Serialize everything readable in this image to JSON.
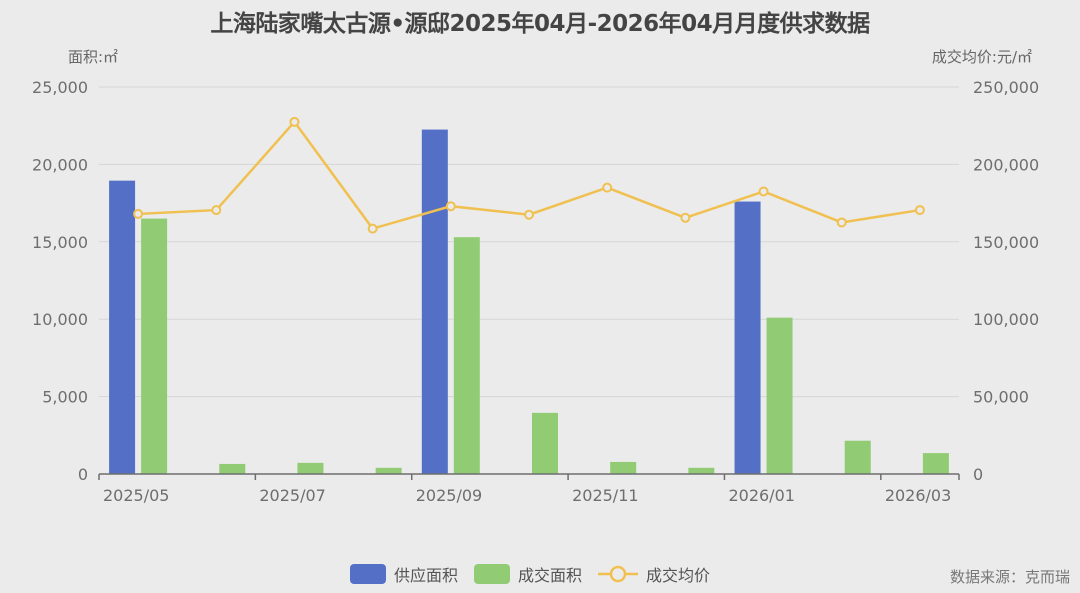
{
  "title": "上海陆家嘴太古源•源邸2025年04月-2026年04月月度供求数据",
  "left_axis_name": "面积:㎡",
  "right_axis_name": "成交均价:元/㎡",
  "legend": [
    {
      "label": "供应面积",
      "color": "#5470c6",
      "type": "bar"
    },
    {
      "label": "成交面积",
      "color": "#91cc75",
      "type": "bar"
    },
    {
      "label": "成交均价",
      "color": "#f0c050",
      "type": "line"
    }
  ],
  "source": "数据来源：克而瑞",
  "chart_data": {
    "type": "bar",
    "title": "上海陆家嘴太古源•源邸2025年04月-2026年04月月度供求数据",
    "xlabel": "",
    "ylabel": "面积:㎡",
    "y2label": "成交均价:元/㎡",
    "ylim": [
      0,
      25000
    ],
    "y2lim": [
      0,
      250000
    ],
    "yticks": [
      0,
      5000,
      10000,
      15000,
      20000,
      25000
    ],
    "y2ticks": [
      0,
      50000,
      100000,
      150000,
      200000,
      250000
    ],
    "ytick_labels": [
      "0",
      "5,000",
      "10,000",
      "15,000",
      "20,000",
      "25,000"
    ],
    "y2tick_labels": [
      "0",
      "50,000",
      "100,000",
      "150,000",
      "200,000",
      "250,000"
    ],
    "categories": [
      "2025/05",
      "2025/06",
      "2025/07",
      "2025/08",
      "2025/09",
      "2025/10",
      "2025/11",
      "2025/12",
      "2026/01",
      "2026/02",
      "2026/03"
    ],
    "xtick_labels_shown": [
      "2025/05",
      "2025/07",
      "2025/09",
      "2025/11",
      "2026/01",
      "2026/03"
    ],
    "grid": true,
    "legend_position": "bottom",
    "series": [
      {
        "name": "供应面积",
        "type": "bar",
        "axis": "left",
        "color": "#5470c6",
        "values": [
          18950,
          0,
          0,
          0,
          22250,
          0,
          0,
          0,
          17600,
          0,
          0
        ]
      },
      {
        "name": "成交面积",
        "type": "bar",
        "axis": "left",
        "color": "#91cc75",
        "values": [
          16500,
          650,
          720,
          400,
          15300,
          3950,
          780,
          400,
          10100,
          2150,
          1350
        ]
      },
      {
        "name": "成交均价",
        "type": "line",
        "axis": "right",
        "color": "#f0c050",
        "values": [
          168000,
          170500,
          227500,
          158500,
          173000,
          167500,
          185000,
          165500,
          182500,
          162500,
          170500
        ]
      }
    ]
  }
}
